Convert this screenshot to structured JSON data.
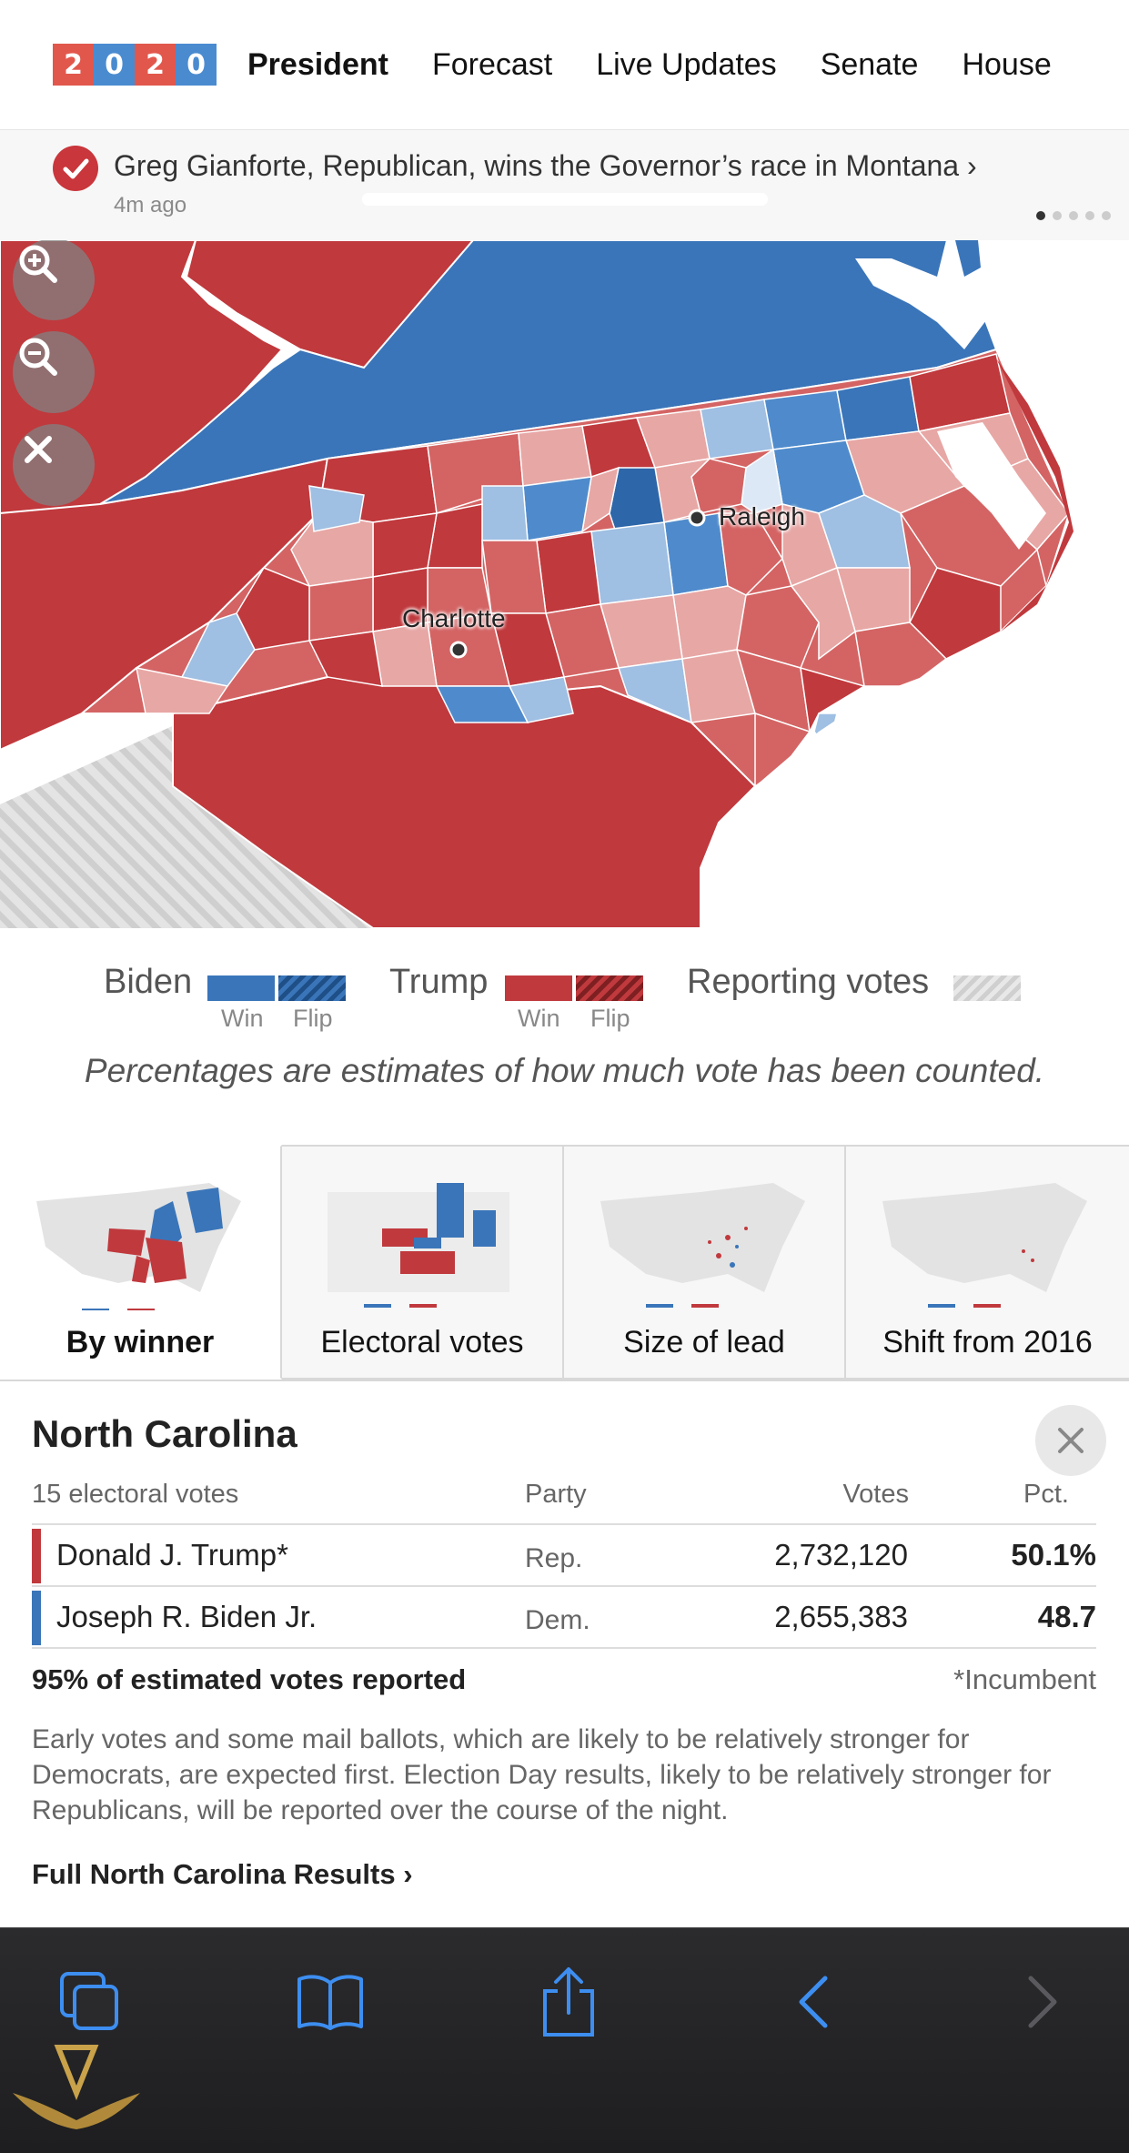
{
  "nav": {
    "logo_digits": [
      "2",
      "0",
      "2",
      "0"
    ],
    "links": [
      {
        "label": "President",
        "active": true
      },
      {
        "label": "Forecast",
        "active": false
      },
      {
        "label": "Live Updates",
        "active": false
      },
      {
        "label": "Senate",
        "active": false
      },
      {
        "label": "House",
        "active": false
      }
    ]
  },
  "ticker": {
    "headline": "Greg Gianforte, Republican, wins the Governor’s race in Montana ›",
    "time": "4m ago",
    "dots": 5,
    "active_dot": 1
  },
  "map": {
    "cities": [
      "Raleigh",
      "Charlotte"
    ],
    "controls": [
      "zoom-in-icon",
      "zoom-out-icon",
      "close-icon"
    ],
    "colors": {
      "dem": "#3a75b9",
      "rep": "#c0393d",
      "rep_light": "#e7a7a5",
      "dem_light": "#9fbfe3"
    }
  },
  "legend": {
    "biden": "Biden",
    "trump": "Trump",
    "reporting": "Reporting votes",
    "win": "Win",
    "flip": "Flip",
    "note": "Percentages are estimates of how much vote has been counted."
  },
  "views": [
    {
      "label": "By winner",
      "active": true
    },
    {
      "label": "Electoral votes",
      "active": false
    },
    {
      "label": "Size of lead",
      "active": false
    },
    {
      "label": "Shift from 2016",
      "active": false
    }
  ],
  "results": {
    "state": "North Carolina",
    "electoral_votes": "15 electoral votes",
    "headers": {
      "party": "Party",
      "votes": "Votes",
      "pct": "Pct."
    },
    "candidates": [
      {
        "name": "Donald J. Trump*",
        "party": "Rep.",
        "votes": "2,732,120",
        "pct": "50.1%",
        "color": "#c0393d"
      },
      {
        "name": "Joseph R. Biden Jr.",
        "party": "Dem.",
        "votes": "2,655,383",
        "pct": "48.7",
        "color": "#3a75b9"
      }
    ],
    "reported": "95% of estimated votes reported",
    "incumbent": "*Incumbent",
    "description": "Early votes and some mail ballots, which are likely to be relatively stronger for Democrats, are expected first. Election Day results, likely to be relatively stronger for Republicans, will be reported over the course of the night.",
    "full_link": "Full North Carolina Results ›"
  },
  "toolbar": {
    "buttons": [
      "tabs-icon",
      "bookmarks-icon",
      "share-icon",
      "back-icon",
      "forward-icon"
    ]
  }
}
